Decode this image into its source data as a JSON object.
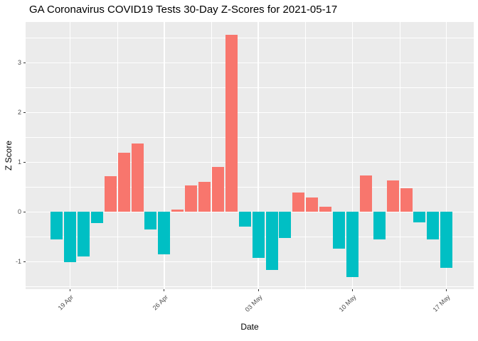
{
  "title": "GA Coronavirus COVID19 Tests 30-Day Z-Scores for 2021-05-17",
  "colors": {
    "positive": "#F8766D",
    "negative": "#00BFC4",
    "panel_background": "#EBEBEB",
    "gridline": "#FFFFFF",
    "tick_text": "#4D4D4D",
    "axis_text": "#000000"
  },
  "chart_data": {
    "type": "bar",
    "title": "GA Coronavirus COVID19 Tests 30-Day Z-Scores for 2021-05-17",
    "xlabel": "Date",
    "ylabel": "Z Score",
    "x": [
      "2021-04-18",
      "2021-04-19",
      "2021-04-20",
      "2021-04-21",
      "2021-04-22",
      "2021-04-23",
      "2021-04-24",
      "2021-04-25",
      "2021-04-26",
      "2021-04-27",
      "2021-04-28",
      "2021-04-29",
      "2021-04-30",
      "2021-05-01",
      "2021-05-02",
      "2021-05-03",
      "2021-05-04",
      "2021-05-05",
      "2021-05-06",
      "2021-05-07",
      "2021-05-08",
      "2021-05-09",
      "2021-05-10",
      "2021-05-11",
      "2021-05-12",
      "2021-05-13",
      "2021-05-14",
      "2021-05-15",
      "2021-05-16",
      "2021-05-17"
    ],
    "values": [
      -0.56,
      -1.01,
      -0.9,
      -0.22,
      0.72,
      1.19,
      1.38,
      -0.35,
      -0.86,
      0.05,
      0.53,
      0.6,
      0.9,
      3.56,
      -0.3,
      -0.92,
      -1.17,
      -0.52,
      0.39,
      0.29,
      0.1,
      -0.74,
      -1.31,
      0.74,
      -0.55,
      0.64,
      0.48,
      -0.21,
      -0.56,
      -1.12
    ],
    "positive_color": "#F8766D",
    "negative_color": "#00BFC4",
    "x_tick_labels": [
      "19 Apr",
      "26 Apr",
      "03 May",
      "10 May",
      "17 May"
    ],
    "x_tick_indices": [
      1,
      8,
      15,
      22,
      29
    ],
    "y_ticks": [
      -1,
      0,
      1,
      2,
      3
    ],
    "y_minor_ticks": [
      -1.5,
      -0.5,
      0.5,
      1.5,
      2.5,
      3.5
    ],
    "ylim": [
      -1.55,
      3.82
    ],
    "grid": "on",
    "legend": "none",
    "panel_theme": "gray"
  }
}
